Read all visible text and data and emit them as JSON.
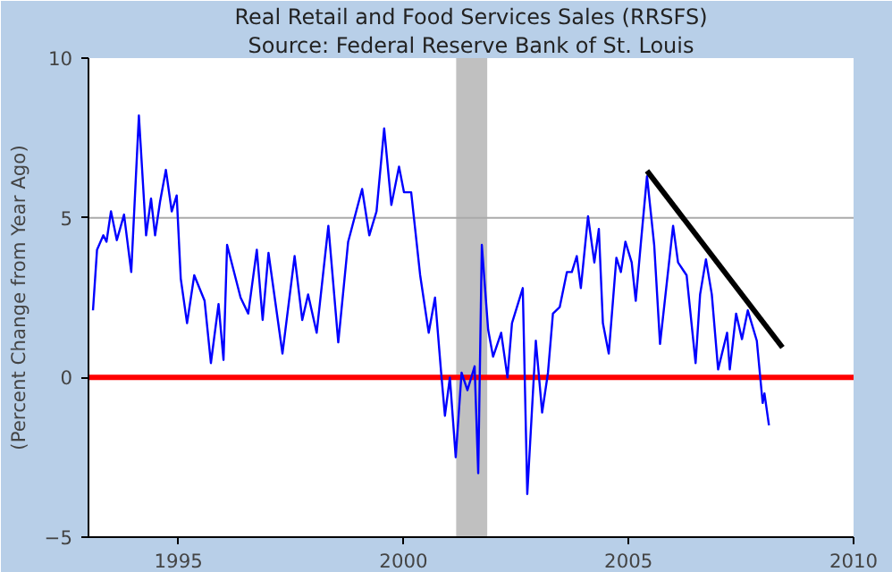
{
  "chart_data": {
    "type": "line",
    "title": "Real Retail and Food Services Sales (RRSFS)",
    "subtitle": "Source: Federal Reserve Bank of St. Louis",
    "ylabel": "(Percent Change from Year Ago)",
    "xlim": [
      1993,
      2010
    ],
    "xticks": [
      1995,
      2000,
      2005,
      2010
    ],
    "ylim": [
      -5,
      10
    ],
    "yticks": [
      -5,
      0,
      5,
      10
    ],
    "series": [
      {
        "color": "#0000ff",
        "x": [
          1993.1,
          1993.19,
          1993.33,
          1993.4,
          1993.5,
          1993.63,
          1993.79,
          1993.95,
          1994.12,
          1994.28,
          1994.39,
          1994.48,
          1994.59,
          1994.72,
          1994.85,
          1994.96,
          1995.05,
          1995.19,
          1995.35,
          1995.58,
          1995.72,
          1995.89,
          1996.0,
          1996.08,
          1996.38,
          1996.55,
          1996.74,
          1996.87,
          1997.0,
          1997.31,
          1997.58,
          1997.75,
          1997.88,
          1998.07,
          1998.33,
          1998.55,
          1998.77,
          1999.08,
          1999.24,
          1999.4,
          1999.57,
          1999.73,
          1999.9,
          2000.01,
          2000.17,
          2000.37,
          2000.56,
          2000.7,
          2000.83,
          2000.92,
          2001.03,
          2001.16,
          2001.29,
          2001.42,
          2001.58,
          2001.66,
          2001.74,
          2001.88,
          2001.99,
          2002.17,
          2002.31,
          2002.41,
          2002.65,
          2002.75,
          2002.94,
          2003.08,
          2003.21,
          2003.32,
          2003.47,
          2003.63,
          2003.74,
          2003.85,
          2003.94,
          2004.1,
          2004.24,
          2004.34,
          2004.43,
          2004.56,
          2004.73,
          2004.83,
          2004.93,
          2005.07,
          2005.16,
          2005.27,
          2005.41,
          2005.57,
          2005.7,
          2005.99,
          2006.1,
          2006.29,
          2006.49,
          2006.59,
          2006.72,
          2006.85,
          2006.99,
          2007.19,
          2007.25,
          2007.39,
          2007.52,
          2007.65,
          2007.85,
          2007.98,
          2008.02,
          2008.12
        ],
        "values": [
          2.1,
          4.0,
          4.45,
          4.25,
          5.2,
          4.3,
          5.1,
          3.3,
          8.2,
          4.45,
          5.6,
          4.45,
          5.5,
          6.5,
          5.2,
          5.7,
          3.1,
          1.7,
          3.2,
          2.4,
          0.45,
          2.3,
          0.55,
          4.15,
          2.5,
          2.0,
          4.0,
          1.8,
          3.9,
          0.75,
          3.8,
          1.8,
          2.6,
          1.4,
          4.75,
          1.1,
          4.25,
          5.9,
          4.45,
          5.2,
          7.8,
          5.4,
          6.6,
          5.8,
          5.8,
          3.2,
          1.4,
          2.5,
          0.25,
          -1.2,
          0.0,
          -2.5,
          0.15,
          -0.4,
          0.35,
          -3.0,
          4.15,
          1.5,
          0.65,
          1.4,
          0.0,
          1.7,
          2.8,
          -3.65,
          1.15,
          -1.1,
          0.15,
          2.0,
          2.2,
          3.3,
          3.3,
          3.8,
          2.8,
          5.05,
          3.6,
          4.65,
          1.7,
          0.75,
          3.75,
          3.3,
          4.25,
          3.6,
          2.4,
          4.15,
          6.3,
          4.15,
          1.05,
          4.75,
          3.6,
          3.2,
          0.45,
          2.6,
          3.7,
          2.6,
          0.25,
          1.4,
          0.25,
          2.0,
          1.2,
          2.1,
          1.15,
          -0.8,
          -0.5,
          -1.5
        ]
      },
      {
        "color": "#000000",
        "x": [
          2005.41,
          2008.42
        ],
        "values": [
          6.47,
          0.94
        ]
      }
    ],
    "ref_lines": [
      {
        "axis": "y",
        "value": 0,
        "color": "#ff0000"
      },
      {
        "axis": "y",
        "value": 5,
        "color": "#aaaaaa"
      }
    ],
    "bands": [
      {
        "axis": "x",
        "from": 2001.17,
        "to": 2001.86,
        "color": "#c0c0c0"
      }
    ]
  }
}
